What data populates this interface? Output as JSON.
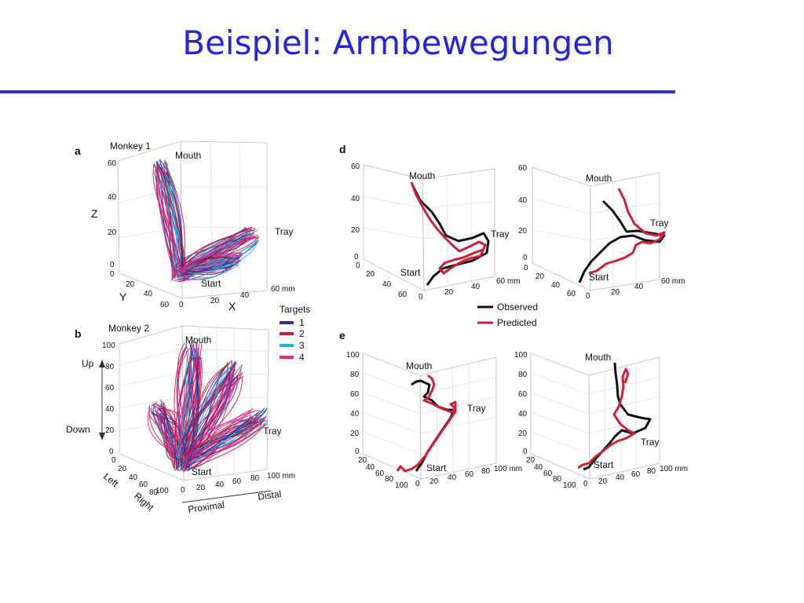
{
  "slide": {
    "title": "Beispiel: Armbewegungen"
  },
  "colors": {
    "title": "#2626d9",
    "rule": "#2f2fd6",
    "target1": "#3d2a8c",
    "target2": "#c8203a",
    "target3": "#23b3d8",
    "target4": "#d82a90",
    "observed": "#111111",
    "predicted": "#d02038"
  },
  "panels": {
    "a": {
      "letter": "a",
      "title": "Monkey 1",
      "z_ticks": [
        "60",
        "40",
        "20",
        "0"
      ],
      "y_ticks": [
        "0",
        "20",
        "40",
        "60"
      ],
      "x_ticks": [
        "0",
        "20",
        "40",
        "60 mm"
      ],
      "axis_z": "Z",
      "axis_y": "Y",
      "axis_x": "X",
      "label_mouth": "Mouth",
      "label_tray": "Tray",
      "label_start": "Start"
    },
    "b": {
      "letter": "b",
      "title": "Monkey 2",
      "z_ticks": [
        "100",
        "80",
        "60",
        "40",
        "20",
        "0"
      ],
      "y_ticks": [
        "0",
        "20",
        "40",
        "60",
        "80",
        "100"
      ],
      "x_ticks": [
        "0",
        "20",
        "40",
        "60",
        "80",
        "100 mm"
      ],
      "label_up": "Up",
      "label_down": "Down",
      "label_left": "Left",
      "label_right": "Right",
      "label_proximal": "Proximal",
      "label_distal": "Distal",
      "label_mouth": "Mouth",
      "label_tray": "Tray",
      "label_start": "Start"
    },
    "d": {
      "letter": "d",
      "z_ticks": [
        "60",
        "40",
        "20",
        "0"
      ],
      "y_ticks": [
        "0",
        "20",
        "40",
        "60"
      ],
      "x_ticks": [
        "0",
        "20",
        "40",
        "60 mm"
      ],
      "label_mouth": "Mouth",
      "label_tray": "Tray",
      "label_start": "Start"
    },
    "e": {
      "letter": "e",
      "z_ticks": [
        "100",
        "80",
        "60",
        "40",
        "20",
        "0"
      ],
      "y_ticks": [
        "20",
        "40",
        "60",
        "80",
        "100"
      ],
      "x_ticks": [
        "0",
        "20",
        "40",
        "60",
        "80",
        "100 mm"
      ],
      "label_mouth": "Mouth",
      "label_tray": "Tray",
      "label_start": "Start"
    }
  },
  "targets_legend": {
    "title": "Targets",
    "items": [
      {
        "label": "1"
      },
      {
        "label": "2"
      },
      {
        "label": "3"
      },
      {
        "label": "4"
      }
    ]
  },
  "traj_legend": {
    "observed": "Observed",
    "predicted": "Predicted"
  }
}
